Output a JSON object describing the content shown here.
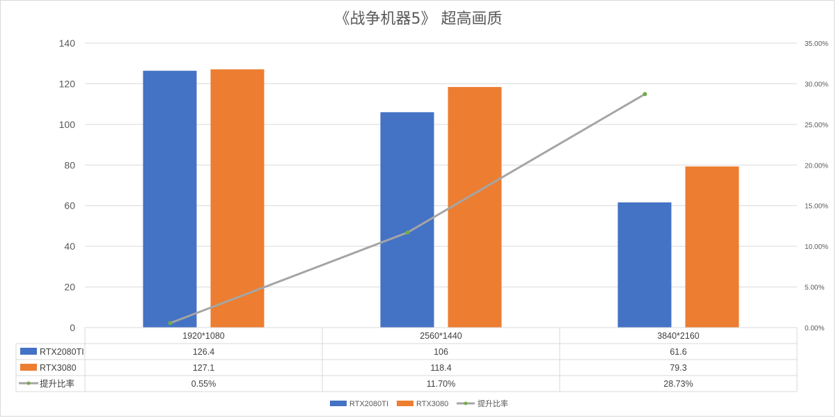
{
  "colors": {
    "series1": "#4472c4",
    "series2": "#ed7d31",
    "series3": "#a5a5a5",
    "marker": "#70ad47",
    "grid": "#d9d9d9"
  },
  "chart_data": {
    "type": "bar",
    "title": "《战争机器5》 超高画质",
    "categories": [
      "1920*1080",
      "2560*1440",
      "3840*2160"
    ],
    "series": [
      {
        "name": "RTX2080TI",
        "type": "bar",
        "axis": "left",
        "values": [
          126.4,
          106,
          61.6
        ],
        "labels": [
          "126.4",
          "106",
          "61.6"
        ]
      },
      {
        "name": "RTX3080",
        "type": "bar",
        "axis": "left",
        "values": [
          127.1,
          118.4,
          79.3
        ],
        "labels": [
          "127.1",
          "118.4",
          "79.3"
        ]
      },
      {
        "name": "提升比率",
        "type": "line",
        "axis": "right",
        "values": [
          0.0055,
          0.117,
          0.2873
        ],
        "labels": [
          "0.55%",
          "11.70%",
          "28.73%"
        ]
      }
    ],
    "y_left": {
      "min": 0,
      "max": 140,
      "ticks": [
        "0",
        "20",
        "40",
        "60",
        "80",
        "100",
        "120",
        "140"
      ]
    },
    "y_right": {
      "min": 0,
      "max": 0.35,
      "ticks": [
        "0.00%",
        "5.00%",
        "10.00%",
        "15.00%",
        "20.00%",
        "25.00%",
        "30.00%",
        "35.00%"
      ]
    },
    "grid": true,
    "legend": "bottom",
    "data_table": true
  }
}
